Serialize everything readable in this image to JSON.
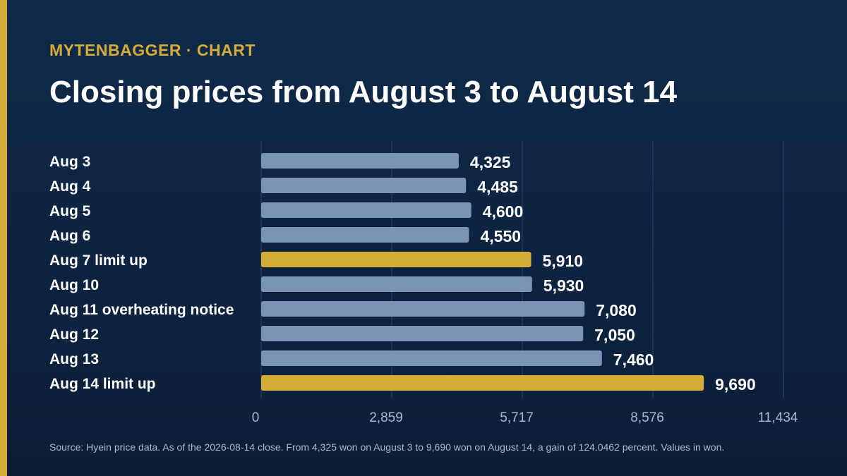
{
  "header": {
    "kicker": "MYTENBAGGER · CHART",
    "title": "Closing prices from August 3 to August 14"
  },
  "footer": {
    "source": "Source: Hyein price data. As of the 2026-08-14 close. From 4,325 won on August 3 to 9,690 won on August 14, a gain of 124.0462 percent. Values in won."
  },
  "colors": {
    "background": "#0f2a4a",
    "bar_default": "#7b93b5",
    "bar_highlight": "#d4ac37",
    "accent": "#d4ac37"
  },
  "chart_data": {
    "type": "bar",
    "orientation": "horizontal",
    "categories": [
      "Aug 3",
      "Aug 4",
      "Aug 5",
      "Aug 6",
      "Aug 7 limit up",
      "Aug 10",
      "Aug 11 overheating notice",
      "Aug 12",
      "Aug 13",
      "Aug 14 limit up"
    ],
    "values": [
      4325,
      4485,
      4600,
      4550,
      5910,
      5930,
      7080,
      7050,
      7460,
      9690
    ],
    "value_labels": [
      "4,325",
      "4,485",
      "4,600",
      "4,550",
      "5,910",
      "5,930",
      "7,080",
      "7,050",
      "7,460",
      "9,690"
    ],
    "highlighted": [
      false,
      false,
      false,
      false,
      true,
      false,
      false,
      false,
      false,
      true
    ],
    "xlim": [
      0,
      11434
    ],
    "x_ticks": [
      0,
      2859,
      5717,
      8576,
      11434
    ],
    "x_tick_labels": [
      "0",
      "2,859",
      "5,717",
      "8,576",
      "11,434"
    ],
    "grid": true
  }
}
